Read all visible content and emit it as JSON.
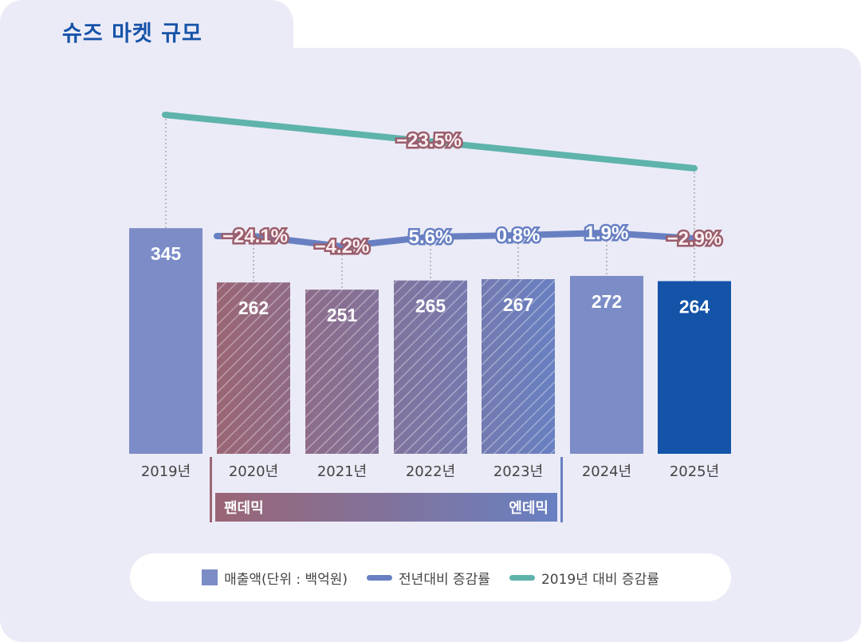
{
  "title": "슈즈 마켓 규모",
  "chart_data": {
    "type": "bar",
    "categories": [
      "2019년",
      "2020년",
      "2021년",
      "2022년",
      "2023년",
      "2024년",
      "2025년"
    ],
    "series": [
      {
        "name": "매출액(단위 : 백억원)",
        "type": "bar",
        "values": [
          345,
          262,
          251,
          265,
          267,
          272,
          264
        ],
        "color": "#7b8cc7"
      },
      {
        "name": "전년대비 증감률",
        "type": "line",
        "values": [
          null,
          -24.1,
          -4.2,
          5.6,
          0.8,
          1.9,
          -2.9
        ],
        "labels": [
          "",
          "−24.1%",
          "−4.2%",
          "5.6%",
          "0.8%",
          "1.9%",
          "−2.9%"
        ],
        "color": "#6880c2"
      },
      {
        "name": "2019년 대비 증감률",
        "type": "line",
        "values": [
          0,
          null,
          null,
          null,
          null,
          null,
          -23.5
        ],
        "label": "−23.5%",
        "color": "#5eb3ab"
      }
    ],
    "highlight_color": "#1353a8",
    "hatched_categories": [
      "2020년",
      "2021년",
      "2022년",
      "2023年"
    ],
    "periods": [
      {
        "label": "팬데믹",
        "color": "#9a6575"
      },
      {
        "label": "엔데믹",
        "color": "#6880c2"
      }
    ],
    "legend_placement": "bottom"
  }
}
